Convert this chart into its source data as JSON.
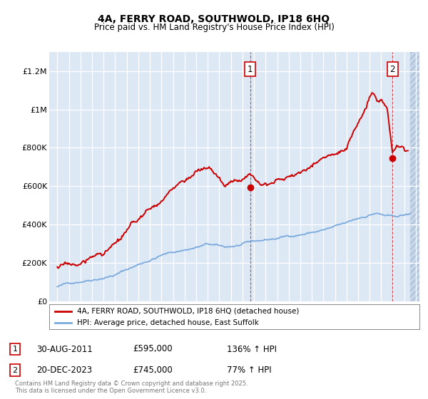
{
  "title_line1": "4A, FERRY ROAD, SOUTHWOLD, IP18 6HQ",
  "title_line2": "Price paid vs. HM Land Registry's House Price Index (HPI)",
  "ylabel_ticks": [
    "£0",
    "£200K",
    "£400K",
    "£600K",
    "£800K",
    "£1M",
    "£1.2M"
  ],
  "ytick_values": [
    0,
    200000,
    400000,
    600000,
    800000,
    1000000,
    1200000
  ],
  "ylim": [
    0,
    1300000
  ],
  "background_color": "#dde8f5",
  "hatch_area_color": "#c5d5ea",
  "red_color": "#cc0000",
  "blue_color": "#7aaadd",
  "grid_color": "#ffffff",
  "transaction1_date": "30-AUG-2011",
  "transaction1_price": 595000,
  "transaction1_hpi": "136% ↑ HPI",
  "transaction1_year": 2011.67,
  "transaction1_price_val": 595000,
  "transaction2_date": "20-DEC-2023",
  "transaction2_price": 745000,
  "transaction2_hpi": "77% ↑ HPI",
  "transaction2_year": 2023.97,
  "transaction2_price_val": 745000,
  "legend_line1": "4A, FERRY ROAD, SOUTHWOLD, IP18 6HQ (detached house)",
  "legend_line2": "HPI: Average price, detached house, East Suffolk",
  "footer": "Contains HM Land Registry data © Crown copyright and database right 2025.\nThis data is licensed under the Open Government Licence v3.0."
}
